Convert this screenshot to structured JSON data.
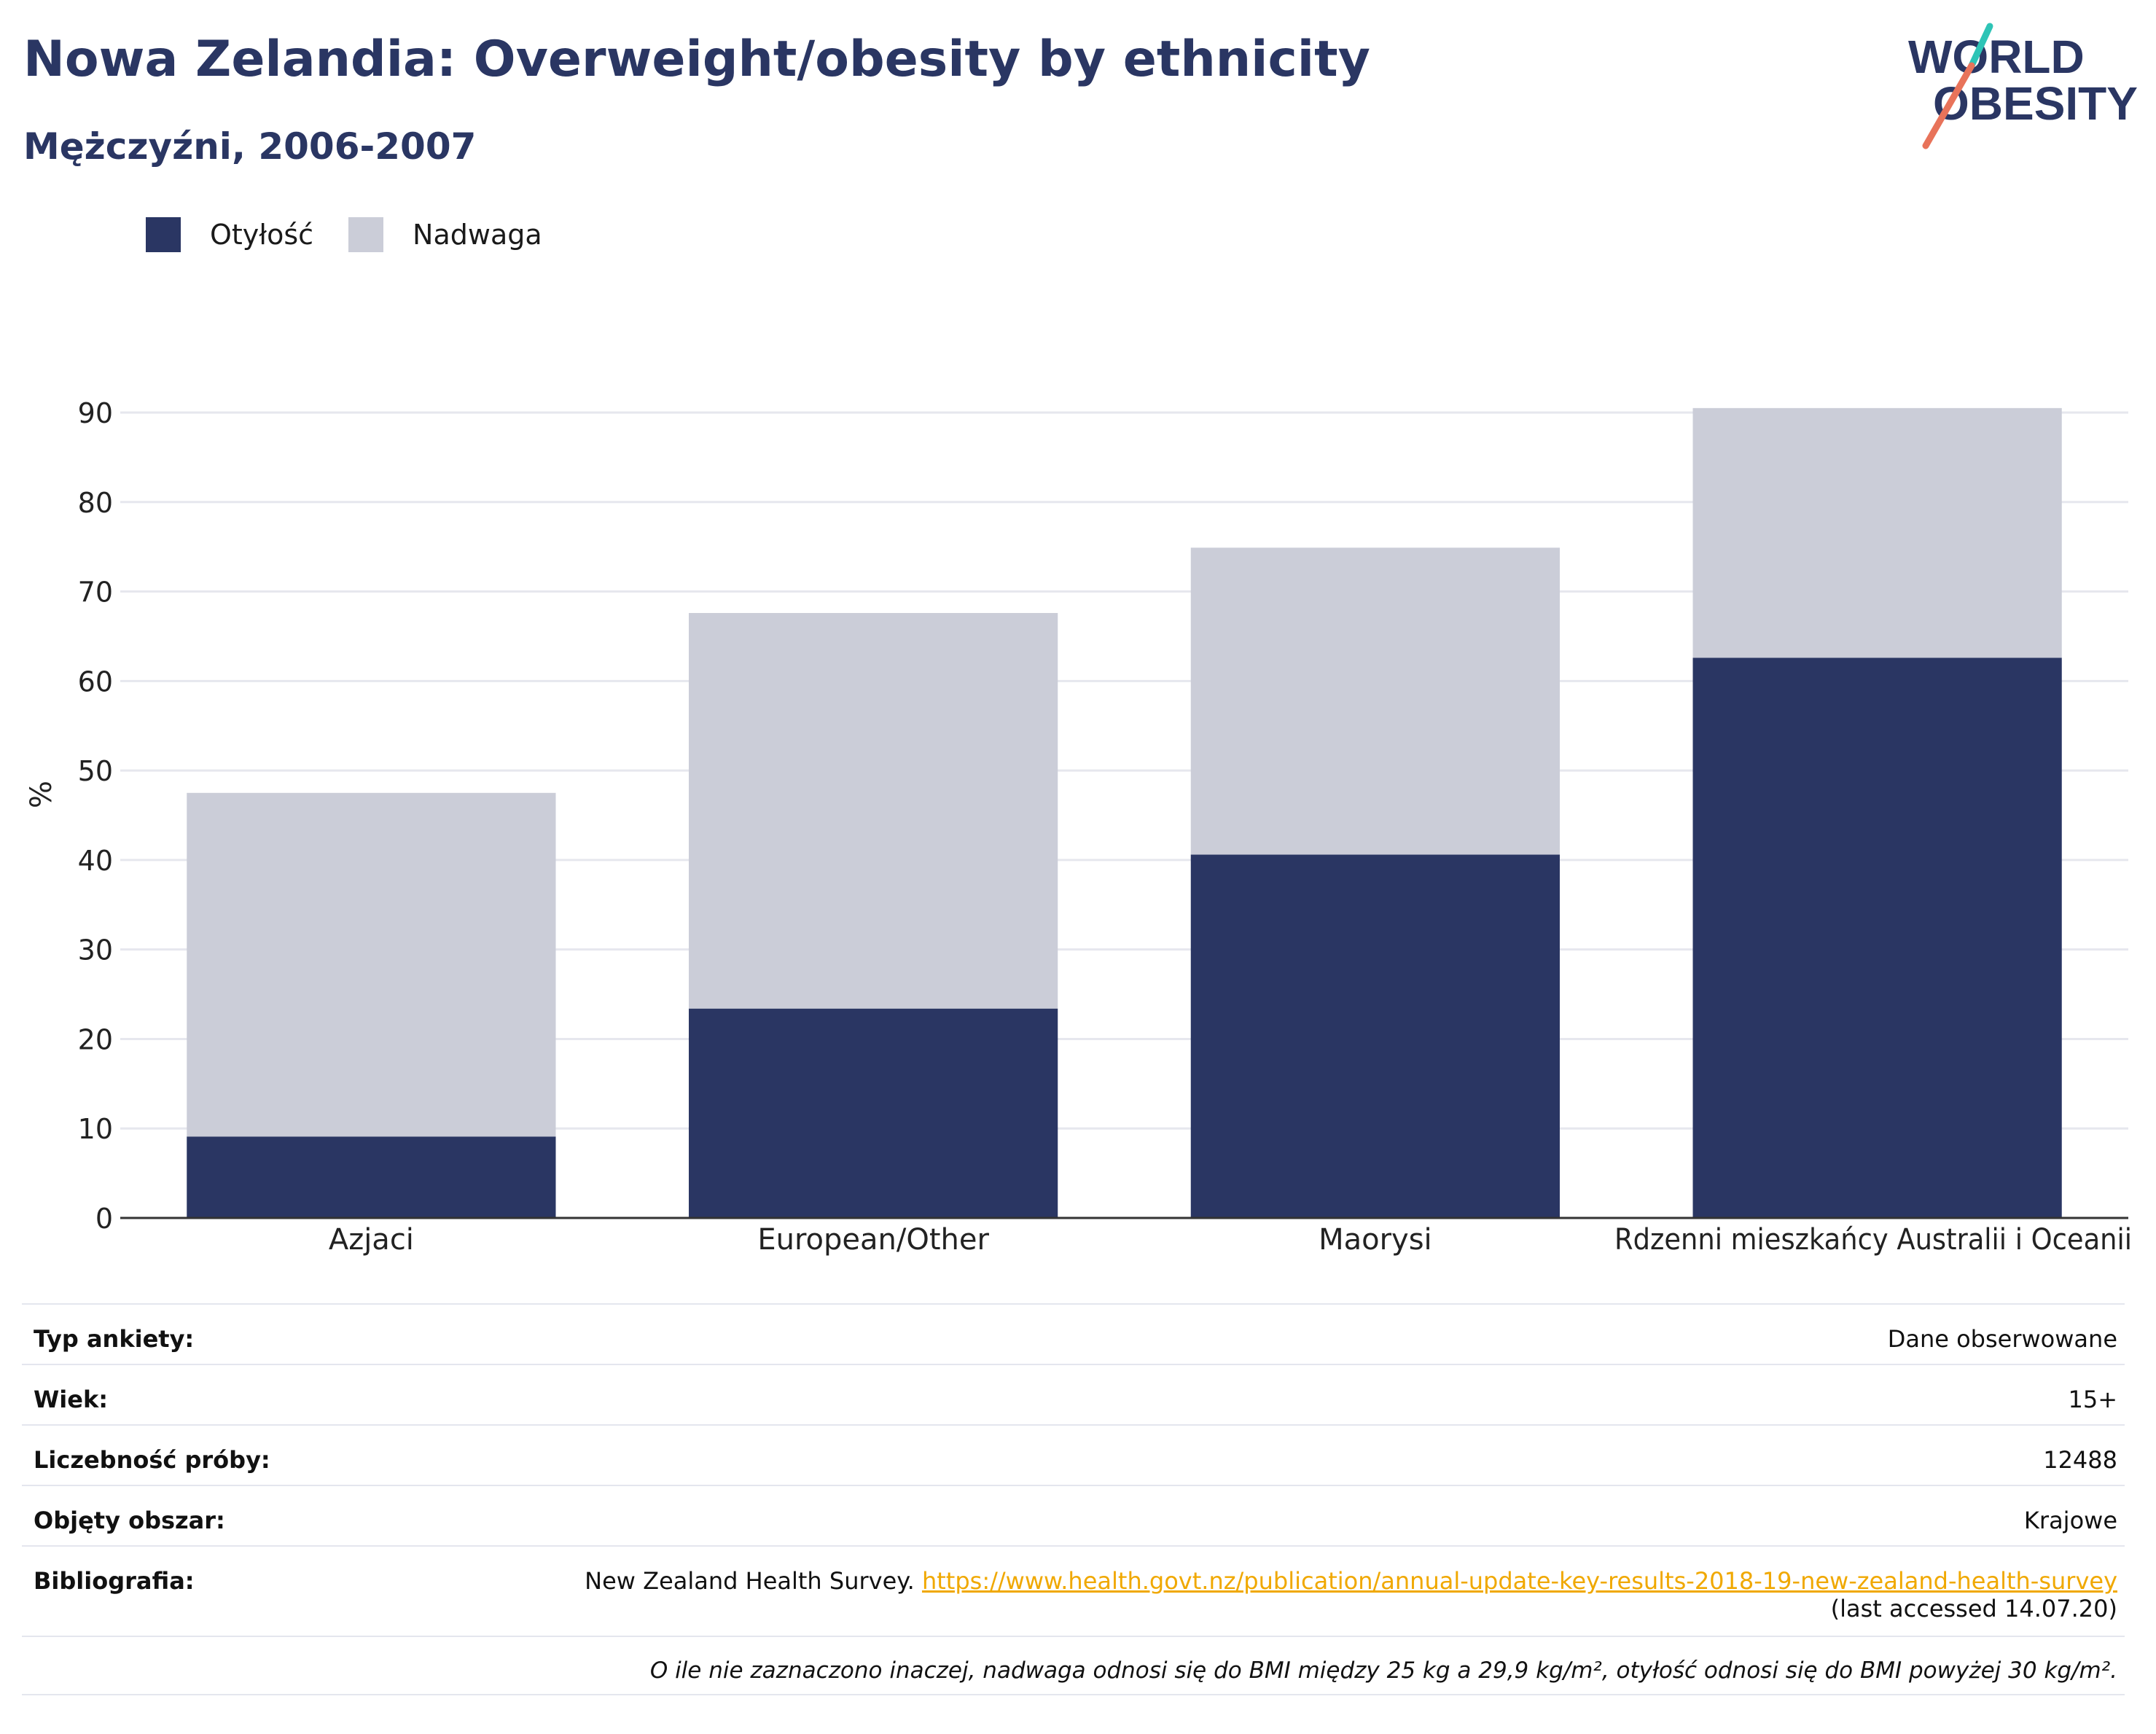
{
  "title": "Nowa Zelandia: Overweight/obesity by ethnicity",
  "subtitle": "Mężczyźni, 2006-2007",
  "logo": {
    "line1": "WORLD",
    "line2": "OBESITY",
    "accent_teal": "#2ec4b6",
    "accent_coral": "#e8735a"
  },
  "colors": {
    "obesity": "#2a3663",
    "overweight": "#cbcdd8",
    "title": "#2a3663",
    "link": "#f0a800"
  },
  "chart_data": {
    "type": "bar",
    "stacked": true,
    "categories": [
      "Azjaci",
      "European/Other",
      "Maorysi",
      "Rdzenni mieszkańcy Australii i Oceanii"
    ],
    "series": [
      {
        "name": "Otyłość",
        "values": [
          9.1,
          23.4,
          40.6,
          62.6
        ]
      },
      {
        "name": "Nadwaga",
        "values": [
          38.4,
          44.2,
          34.3,
          27.9
        ]
      }
    ],
    "totals": [
      47.5,
      67.6,
      74.9,
      90.5
    ],
    "ylabel": "%",
    "ylim": [
      0,
      90
    ],
    "yticks": [
      0,
      10,
      20,
      30,
      40,
      50,
      60,
      70,
      80,
      90
    ],
    "grid": true,
    "legend": "top-left"
  },
  "info": {
    "survey_type_label": "Typ ankiety:",
    "survey_type_value": "Dane obserwowane",
    "age_label": "Wiek:",
    "age_value": "15+",
    "sample_label": "Liczebność próby:",
    "sample_value": "12488",
    "area_label": "Objęty obszar:",
    "area_value": "Krajowe",
    "biblio_label": "Bibliografia:",
    "biblio_text": "New Zealand Health Survey.",
    "biblio_url": "https://www.health.govt.nz/publication/annual-update-key-results-2018-19-new-zealand-health-survey",
    "biblio_accessed": "(last accessed 14.07.20)",
    "note": "O ile nie zaznaczono inaczej, nadwaga odnosi się do BMI między 25 kg a 29,9 kg/m², otyłość odnosi się do BMI powyżej 30 kg/m²."
  }
}
